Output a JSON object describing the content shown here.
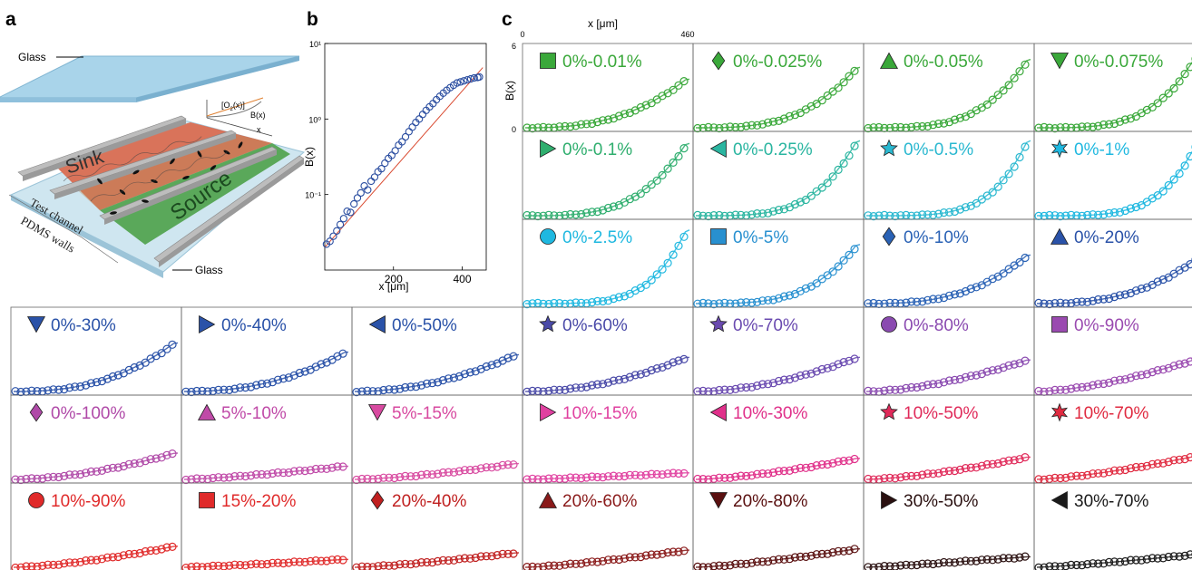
{
  "labels": {
    "a": "a",
    "b": "b",
    "c": "c"
  },
  "panel_a": {
    "glass_top": "Glass",
    "glass_bottom": "Glass",
    "sink": "Sink",
    "source": "Source",
    "test_channel": "Test channel",
    "pdms_walls": "PDMS walls",
    "o2_label": "[O",
    "o2_sub": "2",
    "o2_rest": "(x)]",
    "bx_label": "B(x)",
    "x_label": "x",
    "colors": {
      "sink": "#d9735a",
      "source": "#5aa85a",
      "glass": "#a9d4ea",
      "wall": "#bdbdbd"
    }
  },
  "chart_data": [
    {
      "type": "scatter",
      "panel": "b",
      "xlabel": "x [μm]",
      "ylabel": "B(x)",
      "yscale": "log",
      "xlim": [
        0,
        470
      ],
      "ylim": [
        0.01,
        10
      ],
      "xticks": [
        "200",
        "400"
      ],
      "yticks": [
        "10⁻¹",
        "10⁰",
        "10¹"
      ],
      "series": [
        {
          "marker": "open-circle",
          "color": "#2a4da0",
          "x": [
            5,
            15,
            25,
            35,
            45,
            55,
            65,
            75,
            85,
            95,
            105,
            115,
            125,
            135,
            145,
            155,
            165,
            175,
            185,
            195,
            205,
            215,
            225,
            235,
            245,
            255,
            265,
            275,
            285,
            295,
            305,
            315,
            325,
            335,
            345,
            355,
            365,
            375,
            385,
            395,
            405,
            415,
            425,
            435,
            445,
            450
          ],
          "y": [
            0.022,
            0.024,
            0.028,
            0.033,
            0.04,
            0.048,
            0.06,
            0.058,
            0.075,
            0.09,
            0.105,
            0.13,
            0.115,
            0.15,
            0.17,
            0.2,
            0.22,
            0.26,
            0.3,
            0.33,
            0.38,
            0.45,
            0.5,
            0.58,
            0.68,
            0.78,
            0.9,
            1.0,
            1.15,
            1.3,
            1.45,
            1.6,
            1.8,
            2.0,
            2.2,
            2.4,
            2.6,
            2.8,
            3.0,
            3.1,
            3.2,
            3.3,
            3.4,
            3.5,
            3.55,
            3.6
          ]
        },
        {
          "marker": "line",
          "color": "#d94a30",
          "x": [
            0,
            460
          ],
          "y": [
            0.02,
            4.8
          ]
        }
      ]
    },
    {
      "type": "scatter",
      "panel": "c",
      "xlabel": "x [μm]",
      "ylabel": "B(x)",
      "xtick_labels": [
        "0",
        "460"
      ],
      "ytick_labels": [
        "0",
        "6"
      ],
      "xlim": [
        0,
        460
      ],
      "ylim": [
        0,
        6
      ],
      "panels": [
        {
          "label": "0%-0.01%",
          "marker": "square",
          "color": "#3aa83a",
          "scale": 3.7,
          "steep": 1.0
        },
        {
          "label": "0%-0.025%",
          "marker": "diamond",
          "color": "#3aa83a",
          "scale": 4.6,
          "steep": 1.3
        },
        {
          "label": "0%-0.05%",
          "marker": "triangle-up",
          "color": "#3aa83a",
          "scale": 5.2,
          "steep": 1.6
        },
        {
          "label": "0%-0.075%",
          "marker": "triangle-down",
          "color": "#3aa83a",
          "scale": 5.7,
          "steep": 1.7
        },
        {
          "label": "0%-0.1%",
          "marker": "triangle-right",
          "color": "#2fae6e",
          "scale": 5.5,
          "steep": 1.5
        },
        {
          "label": "0%-0.25%",
          "marker": "triangle-left",
          "color": "#2ab5a0",
          "scale": 5.7,
          "steep": 1.8
        },
        {
          "label": "0%-0.5%",
          "marker": "star5",
          "color": "#2ab8d0",
          "scale": 5.7,
          "steep": 2.2
        },
        {
          "label": "0%-1%",
          "marker": "star6",
          "color": "#1fb8e0",
          "scale": 5.7,
          "steep": 2.1
        },
        {
          "label": "0%-2.5%",
          "marker": "circle",
          "color": "#1fb8e0",
          "scale": 5.6,
          "steep": 2.2
        },
        {
          "label": "0%-5%",
          "marker": "square",
          "color": "#2890d0",
          "scale": 4.5,
          "steep": 1.6
        },
        {
          "label": "0%-10%",
          "marker": "diamond",
          "color": "#2a62b5",
          "scale": 3.7,
          "steep": 1.1
        },
        {
          "label": "0%-20%",
          "marker": "triangle-up",
          "color": "#2a52a8",
          "scale": 3.5,
          "steep": 1.0
        },
        {
          "label": "0%-30%",
          "marker": "triangle-down",
          "color": "#2a52a8",
          "scale": 3.7,
          "steep": 0.9
        },
        {
          "label": "0%-40%",
          "marker": "triangle-right",
          "color": "#2a52a8",
          "scale": 3.0,
          "steep": 0.8
        },
        {
          "label": "0%-50%",
          "marker": "triangle-left",
          "color": "#2a52a8",
          "scale": 2.8,
          "steep": 0.6
        },
        {
          "label": "0%-60%",
          "marker": "star5",
          "color": "#4a4aa8",
          "scale": 2.6,
          "steep": 0.6
        },
        {
          "label": "0%-70%",
          "marker": "star5",
          "color": "#6a4ab0",
          "scale": 2.6,
          "steep": 0.5
        },
        {
          "label": "0%-80%",
          "marker": "circle",
          "color": "#8a4ab0",
          "scale": 2.4,
          "steep": 0.4
        },
        {
          "label": "0%-90%",
          "marker": "square",
          "color": "#9a4ab0",
          "scale": 2.5,
          "steep": 0.35
        },
        {
          "label": "0%-100%",
          "marker": "diamond",
          "color": "#b04aa8",
          "scale": 2.0,
          "steep": 0.45
        },
        {
          "label": "5%-10%",
          "marker": "triangle-up",
          "color": "#c04aa8",
          "scale": 1.0,
          "steep": 0.2
        },
        {
          "label": "5%-15%",
          "marker": "triangle-down",
          "color": "#d84aa0",
          "scale": 1.2,
          "steep": 0.3
        },
        {
          "label": "10%-15%",
          "marker": "triangle-right",
          "color": "#e040a0",
          "scale": 0.5,
          "steep": 0.15
        },
        {
          "label": "10%-30%",
          "marker": "triangle-left",
          "color": "#e0308a",
          "scale": 1.6,
          "steep": 0.3
        },
        {
          "label": "10%-50%",
          "marker": "star5",
          "color": "#e02a5a",
          "scale": 1.7,
          "steep": 0.3
        },
        {
          "label": "10%-70%",
          "marker": "star6",
          "color": "#e02a40",
          "scale": 1.8,
          "steep": 0.25
        },
        {
          "label": "10%-90%",
          "marker": "circle",
          "color": "#e02a2a",
          "scale": 1.6,
          "steep": 0.3
        },
        {
          "label": "15%-20%",
          "marker": "square",
          "color": "#e02a2a",
          "scale": 0.6,
          "steep": 0.1
        },
        {
          "label": "20%-40%",
          "marker": "diamond",
          "color": "#c02020",
          "scale": 1.1,
          "steep": 0.2
        },
        {
          "label": "20%-60%",
          "marker": "triangle-up",
          "color": "#8a1a1a",
          "scale": 1.3,
          "steep": 0.2
        },
        {
          "label": "20%-80%",
          "marker": "triangle-down",
          "color": "#5a1010",
          "scale": 1.4,
          "steep": 0.2
        },
        {
          "label": "30%-50%",
          "marker": "triangle-right",
          "color": "#2a1010",
          "scale": 0.8,
          "steep": 0.1
        },
        {
          "label": "30%-70%",
          "marker": "triangle-left",
          "color": "#1a1a1a",
          "scale": 1.0,
          "steep": 0.15
        }
      ]
    }
  ]
}
